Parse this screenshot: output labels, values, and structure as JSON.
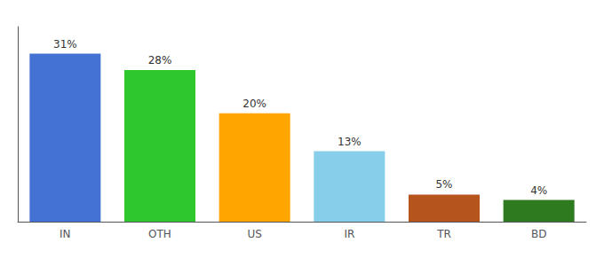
{
  "chart_data": {
    "type": "bar",
    "categories": [
      "IN",
      "OTH",
      "US",
      "IR",
      "TR",
      "BD"
    ],
    "values": [
      31,
      28,
      20,
      13,
      5,
      4
    ],
    "value_labels": [
      "31%",
      "28%",
      "20%",
      "13%",
      "5%",
      "4%"
    ],
    "colors": [
      "#4472d4",
      "#2ec82e",
      "#ffa500",
      "#87ceeb",
      "#b5541d",
      "#2d7a1f"
    ],
    "ylim": [
      0,
      36
    ],
    "grid": false,
    "data_labels": true,
    "tick_labels": "x"
  }
}
